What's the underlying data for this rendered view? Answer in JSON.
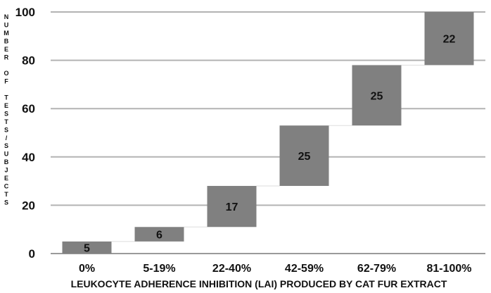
{
  "chart_data": {
    "type": "bar",
    "subtype": "waterfall",
    "categories": [
      "0%",
      "5-19%",
      "22-40%",
      "42-59%",
      "62-79%",
      "81-100%"
    ],
    "values": [
      5,
      6,
      17,
      25,
      25,
      22
    ],
    "ylim": [
      0,
      100
    ],
    "yticks": [
      0,
      20,
      40,
      60,
      80,
      100
    ],
    "xlabel": "LEUKOCYTE ADHERENCE INHIBITION (LAI) PRODUCED BY CAT FUR EXTRACT",
    "ylabel": "NUMBER OF TESTS/SUBJECTS",
    "grid": true,
    "colors": {
      "bar": "#808080",
      "grid": "#b3b3b3",
      "connector": "#dddddd",
      "text": "#111111"
    }
  }
}
